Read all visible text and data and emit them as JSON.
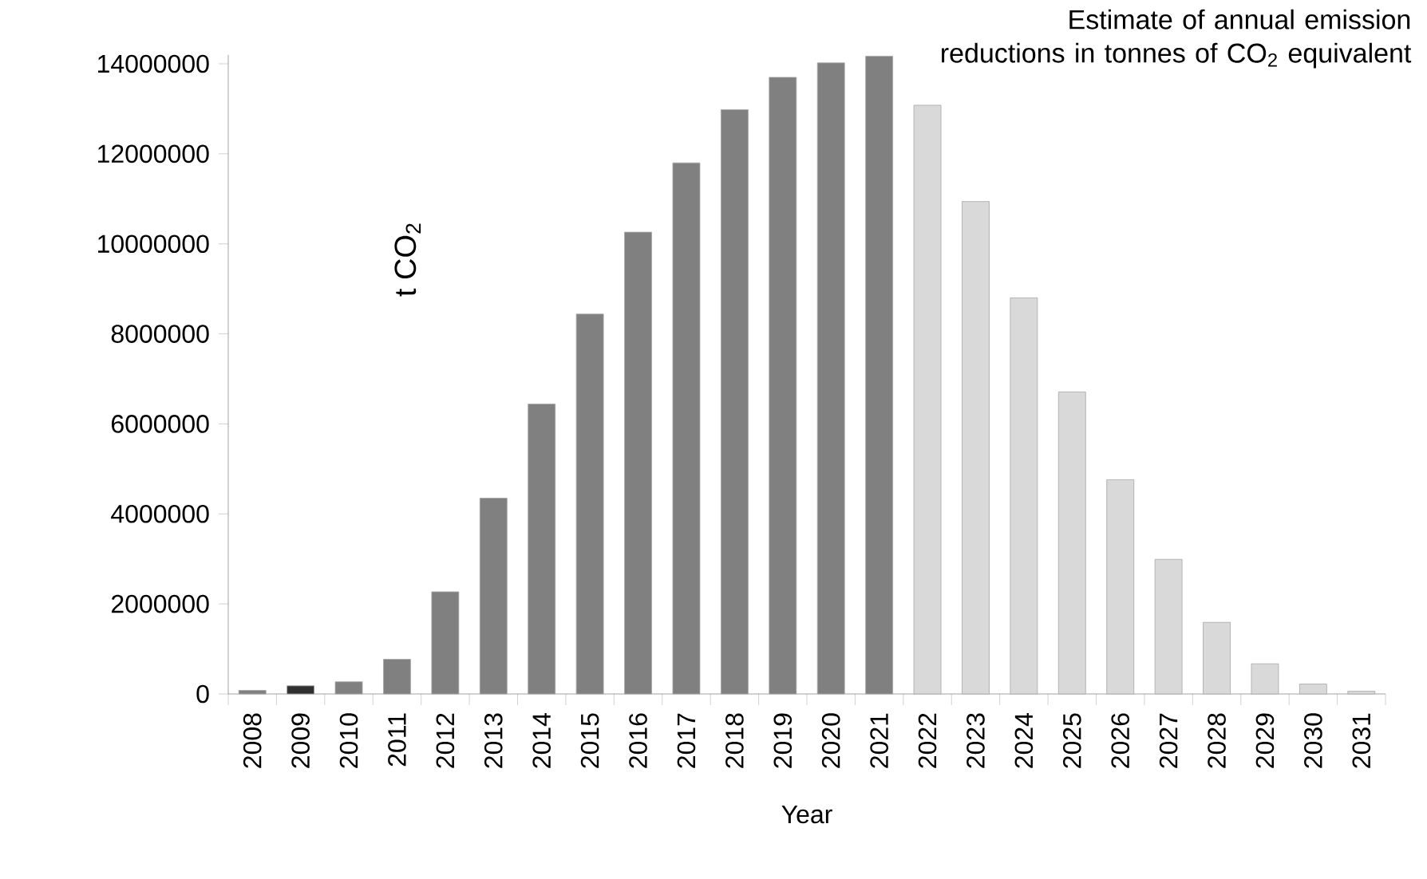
{
  "chart_data": {
    "type": "bar",
    "title": "Estimate of annual emission reductions in tonnes of CO$_{2}$ equivalent",
    "xlabel": "Year",
    "ylabel": "t CO$_{2}$",
    "categories": [
      "2008",
      "2009",
      "2010",
      "2011",
      "2012",
      "2013",
      "2014",
      "2015",
      "2016",
      "2017",
      "2018",
      "2019",
      "2020",
      "2021",
      "2022",
      "2023",
      "2024",
      "2025",
      "2026",
      "2027",
      "2028",
      "2029",
      "2030",
      "2031"
    ],
    "values": [
      80000,
      180000,
      270000,
      770000,
      2270000,
      4350000,
      6440000,
      8440000,
      10260000,
      11800000,
      12980000,
      13700000,
      14020000,
      14170000,
      13080000,
      10940000,
      8800000,
      6710000,
      4760000,
      2990000,
      1590000,
      670000,
      220000,
      60000
    ],
    "colors": [
      "#808080",
      "#303030",
      "#808080",
      "#808080",
      "#808080",
      "#808080",
      "#808080",
      "#808080",
      "#808080",
      "#808080",
      "#808080",
      "#808080",
      "#808080",
      "#808080",
      "#d9d9d9",
      "#d9d9d9",
      "#d9d9d9",
      "#d9d9d9",
      "#d9d9d9",
      "#d9d9d9",
      "#d9d9d9",
      "#d9d9d9",
      "#d9d9d9",
      "#d9d9d9"
    ],
    "ylim": [
      0,
      14200000
    ],
    "yticks": [
      0,
      2000000,
      4000000,
      6000000,
      8000000,
      10000000,
      12000000,
      14000000
    ]
  }
}
